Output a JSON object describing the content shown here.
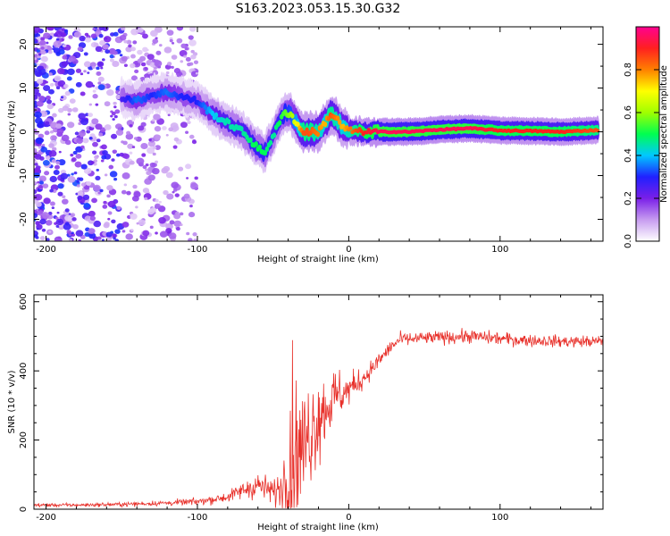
{
  "title": "S163.2023.053.15.30.G32",
  "chart_data": [
    {
      "type": "heatmap",
      "xlabel": "Height of straight line (km)",
      "ylabel": "Frequency (Hz)",
      "xlim": [
        -208,
        168
      ],
      "ylim": [
        -25,
        24
      ],
      "xticks": [
        -200,
        -100,
        0,
        100
      ],
      "yticks": [
        -20,
        -10,
        0,
        10,
        20
      ],
      "colorbar": {
        "label": "Normalized spectral amplitude",
        "range": [
          0,
          1
        ],
        "ticks": [
          "0.0",
          "0.2",
          "0.4",
          "0.6",
          "0.8"
        ],
        "colormap": [
          "#ffffff",
          "#c79cf0",
          "#7a1fe8",
          "#2020ff",
          "#00c8ff",
          "#00ff50",
          "#a0ff00",
          "#ffff00",
          "#ff8000",
          "#ff2020",
          "#ff0090"
        ]
      },
      "ridge": {
        "x": [
          -150,
          -140,
          -130,
          -120,
          -110,
          -100,
          -90,
          -80,
          -70,
          -62,
          -56,
          -50,
          -46,
          -42,
          -38,
          -34,
          -30,
          -26,
          -20,
          -16,
          -12,
          -8,
          -4,
          0,
          10,
          20,
          40,
          60,
          80,
          100,
          120,
          140,
          165
        ],
        "y": [
          8,
          7,
          8.5,
          9,
          8,
          7,
          4,
          2,
          0,
          -3,
          -5,
          -1,
          2,
          4.5,
          4,
          1.5,
          0,
          0,
          0,
          2,
          4,
          3,
          1,
          0.3,
          0,
          0,
          0,
          0.5,
          0.8,
          0.3,
          0.2,
          0,
          0.4
        ],
        "amplitude": [
          0.25,
          0.35,
          0.3,
          0.35,
          0.3,
          0.3,
          0.4,
          0.45,
          0.45,
          0.5,
          0.5,
          0.45,
          0.5,
          0.55,
          0.6,
          0.7,
          0.85,
          0.85,
          0.8,
          0.75,
          0.85,
          0.8,
          0.75,
          0.8,
          0.9,
          0.95,
          0.95,
          0.95,
          0.95,
          0.9,
          0.9,
          0.9,
          0.85
        ]
      }
    },
    {
      "type": "line",
      "xlabel": "Height of straight line (km)",
      "ylabel": "SNR (10 * v/v)",
      "xlim": [
        -208,
        168
      ],
      "ylim": [
        0,
        620
      ],
      "xticks": [
        -200,
        -100,
        0,
        100
      ],
      "yticks": [
        0,
        200,
        400,
        600
      ],
      "color": "#e8302a",
      "envelope": {
        "x": [
          -208,
          -180,
          -150,
          -120,
          -100,
          -80,
          -70,
          -60,
          -50,
          -44,
          -40,
          -36,
          -32,
          -28,
          -24,
          -20,
          -14,
          -8,
          -2,
          4,
          10,
          16,
          22,
          28,
          34,
          50,
          80,
          110,
          140,
          168
        ],
        "mean": [
          12,
          12,
          14,
          18,
          22,
          35,
          55,
          70,
          50,
          60,
          120,
          180,
          160,
          200,
          240,
          270,
          300,
          330,
          340,
          360,
          380,
          410,
          440,
          470,
          490,
          495,
          500,
          490,
          485,
          485
        ],
        "noise": [
          5,
          5,
          6,
          8,
          10,
          15,
          25,
          40,
          35,
          60,
          250,
          280,
          180,
          170,
          150,
          130,
          100,
          80,
          50,
          40,
          30,
          25,
          22,
          20,
          20,
          18,
          20,
          18,
          17,
          17
        ]
      }
    }
  ]
}
